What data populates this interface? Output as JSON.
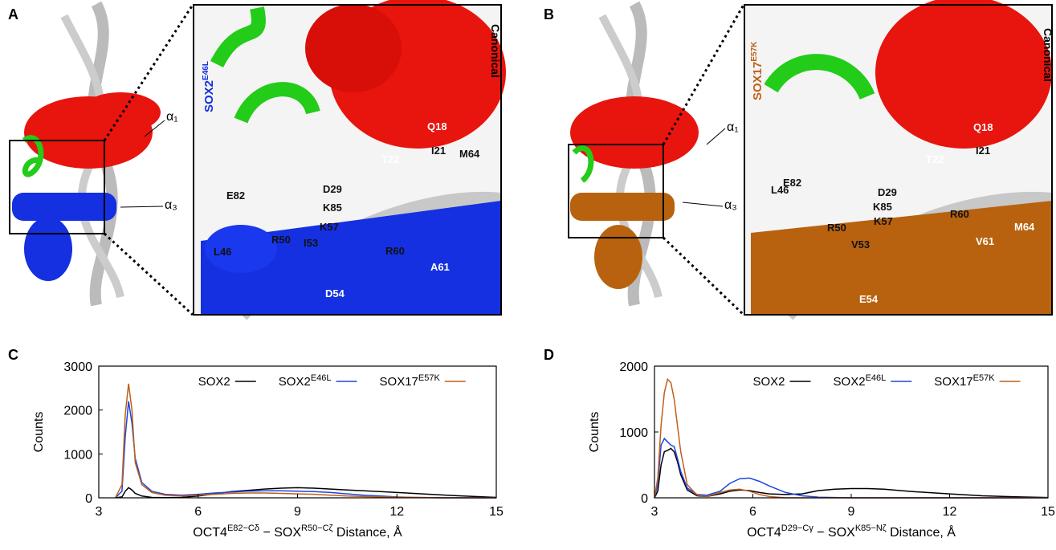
{
  "panels": {
    "A": {
      "label": "A",
      "variant": [
        "SOX2",
        "E46L"
      ],
      "canonical": "Canonical",
      "helices": [
        "α₁",
        "α₃"
      ],
      "residues": [
        "Q18",
        "I21",
        "M64",
        "T22",
        "E82",
        "D29",
        "K85",
        "K57",
        "R50",
        "I53",
        "L46",
        "R60",
        "A61",
        "D54"
      ]
    },
    "B": {
      "label": "B",
      "variant": [
        "SOX17",
        "E57K"
      ],
      "canonical": "Canonical",
      "helices": [
        "α₁",
        "α₃"
      ],
      "residues": [
        "Q18",
        "I21",
        "T22",
        "E82",
        "D29",
        "K85",
        "K57",
        "R50",
        "V53",
        "L46",
        "R60",
        "M64",
        "V61",
        "E54"
      ]
    },
    "C": {
      "label": "C"
    },
    "D": {
      "label": "D"
    }
  },
  "chart_data": [
    {
      "type": "line",
      "ylabel": "Counts",
      "xlabel": [
        "OCT4",
        "E82−Cδ",
        " − SOX",
        "R50−Cζ",
        " Distance, Å"
      ],
      "xlim": [
        3,
        15
      ],
      "xticks": [
        3,
        6,
        9,
        12,
        15
      ],
      "ylim": [
        0,
        3000
      ],
      "yticks": [
        0,
        1000,
        2000,
        3000
      ],
      "x": [
        3.5,
        3.7,
        3.8,
        3.9,
        4.0,
        4.1,
        4.3,
        4.6,
        5,
        5.5,
        6,
        6.5,
        7,
        7.5,
        8,
        8.5,
        9,
        9.5,
        10,
        10.5,
        11,
        11.5,
        12,
        12.5,
        13,
        13.5,
        14,
        14.5,
        15
      ],
      "series": [
        {
          "name": "SOX2",
          "color": "#000000",
          "values": [
            0,
            20,
            150,
            230,
            180,
            100,
            40,
            10,
            5,
            10,
            40,
            90,
            140,
            170,
            200,
            220,
            230,
            220,
            200,
            180,
            160,
            140,
            120,
            100,
            80,
            60,
            40,
            25,
            10
          ]
        },
        {
          "name": "SOX2",
          "name_sup": "E46L",
          "color": "#1f45e0",
          "values": [
            0,
            150,
            1400,
            2200,
            1700,
            900,
            350,
            150,
            80,
            60,
            80,
            110,
            130,
            150,
            160,
            160,
            150,
            140,
            120,
            90,
            60,
            40,
            20,
            10,
            5,
            0,
            0,
            0,
            0
          ]
        },
        {
          "name": "SOX17",
          "name_sup": "E57K",
          "color": "#c0601a",
          "values": [
            0,
            300,
            1900,
            2600,
            2000,
            800,
            300,
            120,
            60,
            40,
            60,
            80,
            100,
            110,
            110,
            100,
            90,
            80,
            60,
            40,
            30,
            20,
            15,
            10,
            5,
            0,
            0,
            0,
            0
          ]
        }
      ]
    },
    {
      "type": "line",
      "ylabel": "Counts",
      "xlabel": [
        "OCT4",
        "D29−Cγ",
        " − SOX",
        "K85−Nζ",
        " Distance, Å"
      ],
      "xlim": [
        3,
        15
      ],
      "xticks": [
        3,
        6,
        9,
        12,
        15
      ],
      "ylim": [
        0,
        2000
      ],
      "yticks": [
        0,
        1000,
        2000
      ],
      "x": [
        3,
        3.1,
        3.2,
        3.3,
        3.4,
        3.5,
        3.6,
        3.7,
        3.8,
        4,
        4.3,
        4.6,
        5,
        5.3,
        5.6,
        5.9,
        6.2,
        6.5,
        7,
        7.5,
        8,
        8.5,
        9,
        9.5,
        10,
        10.5,
        11,
        12,
        13,
        14,
        15
      ],
      "series": [
        {
          "name": "SOX2",
          "color": "#000000",
          "values": [
            0,
            100,
            500,
            700,
            720,
            750,
            700,
            550,
            350,
            120,
            30,
            20,
            60,
            100,
            120,
            110,
            80,
            60,
            50,
            60,
            110,
            130,
            140,
            140,
            130,
            110,
            90,
            60,
            30,
            15,
            5
          ]
        },
        {
          "name": "SOX2",
          "name_sup": "E46L",
          "color": "#1f45e0",
          "values": [
            0,
            200,
            800,
            900,
            850,
            800,
            780,
            600,
            400,
            150,
            50,
            40,
            100,
            220,
            290,
            300,
            250,
            180,
            80,
            30,
            10,
            5,
            0,
            0,
            0,
            0,
            0,
            0,
            0,
            0,
            0
          ]
        },
        {
          "name": "SOX17",
          "name_sup": "E57K",
          "color": "#c0601a",
          "values": [
            0,
            300,
            1100,
            1600,
            1800,
            1750,
            1500,
            1100,
            700,
            200,
            40,
            20,
            80,
            120,
            130,
            100,
            50,
            20,
            0,
            0,
            0,
            0,
            0,
            0,
            0,
            0,
            0,
            0,
            0,
            0,
            0
          ]
        }
      ]
    }
  ]
}
